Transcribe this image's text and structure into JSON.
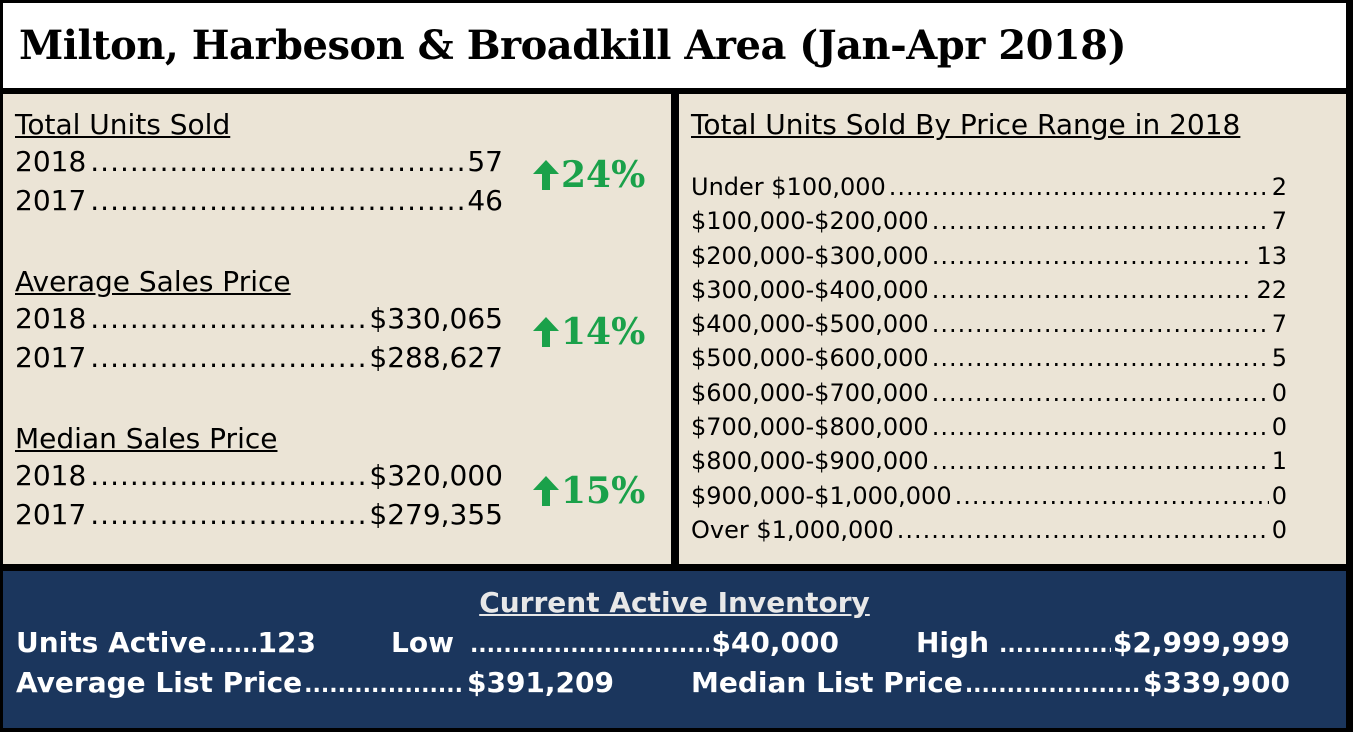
{
  "title": "Milton, Harbeson & Broadkill Area (Jan-Apr 2018)",
  "colors": {
    "accent_green": "#1aa14a",
    "panel_beige": "#ebe4d6",
    "navy": "#1b365d"
  },
  "units_sold": {
    "heading": "Total Units Sold",
    "rows": [
      {
        "year": "2018",
        "value": "57"
      },
      {
        "year": "2017",
        "value": "46"
      }
    ],
    "change": "24%",
    "change_icon": "up-arrow-icon"
  },
  "avg_price": {
    "heading": "Average Sales Price",
    "rows": [
      {
        "year": "2018",
        "value": "$330,065"
      },
      {
        "year": "2017",
        "value": "$288,627"
      }
    ],
    "change": "14%",
    "change_icon": "up-arrow-icon"
  },
  "median_price": {
    "heading": "Median Sales Price",
    "rows": [
      {
        "year": "2018",
        "value": "$320,000"
      },
      {
        "year": "2017",
        "value": "$279,355"
      }
    ],
    "change": "15%",
    "change_icon": "up-arrow-icon"
  },
  "price_ranges": {
    "heading": "Total Units Sold By Price Range in 2018",
    "rows": [
      {
        "range": "Under $100,000",
        "count": "2"
      },
      {
        "range": "$100,000-$200,000",
        "count": "7"
      },
      {
        "range": "$200,000-$300,000",
        "count": "13"
      },
      {
        "range": "$300,000-$400,000",
        "count": "22"
      },
      {
        "range": "$400,000-$500,000",
        "count": "7"
      },
      {
        "range": "$500,000-$600,000",
        "count": "5"
      },
      {
        "range": "$600,000-$700,000",
        "count": "0"
      },
      {
        "range": "$700,000-$800,000",
        "count": "0"
      },
      {
        "range": "$800,000-$900,000",
        "count": "1"
      },
      {
        "range": "$900,000-$1,000,000",
        "count": "0"
      },
      {
        "range": "Over $1,000,000",
        "count": "0"
      }
    ]
  },
  "inventory": {
    "heading": "Current Active Inventory",
    "units_active_label": "Units Active",
    "units_active_value": "123",
    "low_label": "Low",
    "low_value": "$40,000",
    "high_label": "High",
    "high_value": "$2,999,999",
    "avg_list_label": "Average List Price",
    "avg_list_value": "$391,209",
    "median_list_label": "Median List Price",
    "median_list_value": "$339,900"
  }
}
